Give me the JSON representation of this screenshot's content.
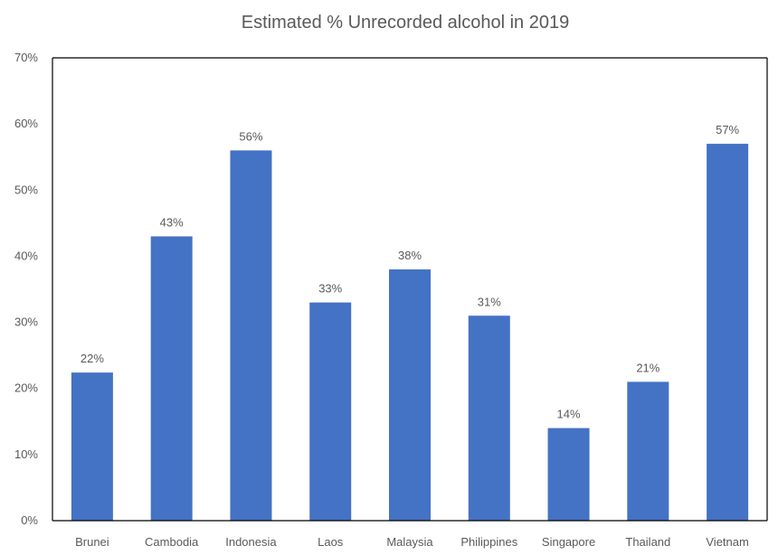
{
  "chart_data": {
    "type": "bar",
    "title": "Estimated % Unrecorded alcohol in 2019",
    "xlabel": "",
    "ylabel": "",
    "categories": [
      "Brunei",
      "Cambodia",
      "Indonesia",
      "Laos",
      "Malaysia",
      "Philippines",
      "Singapore",
      "Thailand",
      "Vietnam"
    ],
    "values": [
      22.4,
      43,
      56,
      33,
      38,
      31,
      14,
      21,
      57
    ],
    "data_labels": [
      "22%",
      "43%",
      "56%",
      "33%",
      "38%",
      "31%",
      "14%",
      "21%",
      "57%"
    ],
    "ylim": [
      0,
      70
    ],
    "yticks": [
      0,
      10,
      20,
      30,
      40,
      50,
      60,
      70
    ],
    "ytick_labels": [
      "0%",
      "10%",
      "20%",
      "30%",
      "40%",
      "50%",
      "60%",
      "70%"
    ],
    "grid": false,
    "legend": "none",
    "colors": {
      "bar": "#4472C4",
      "axis": "#000000",
      "text": "#595959"
    }
  }
}
